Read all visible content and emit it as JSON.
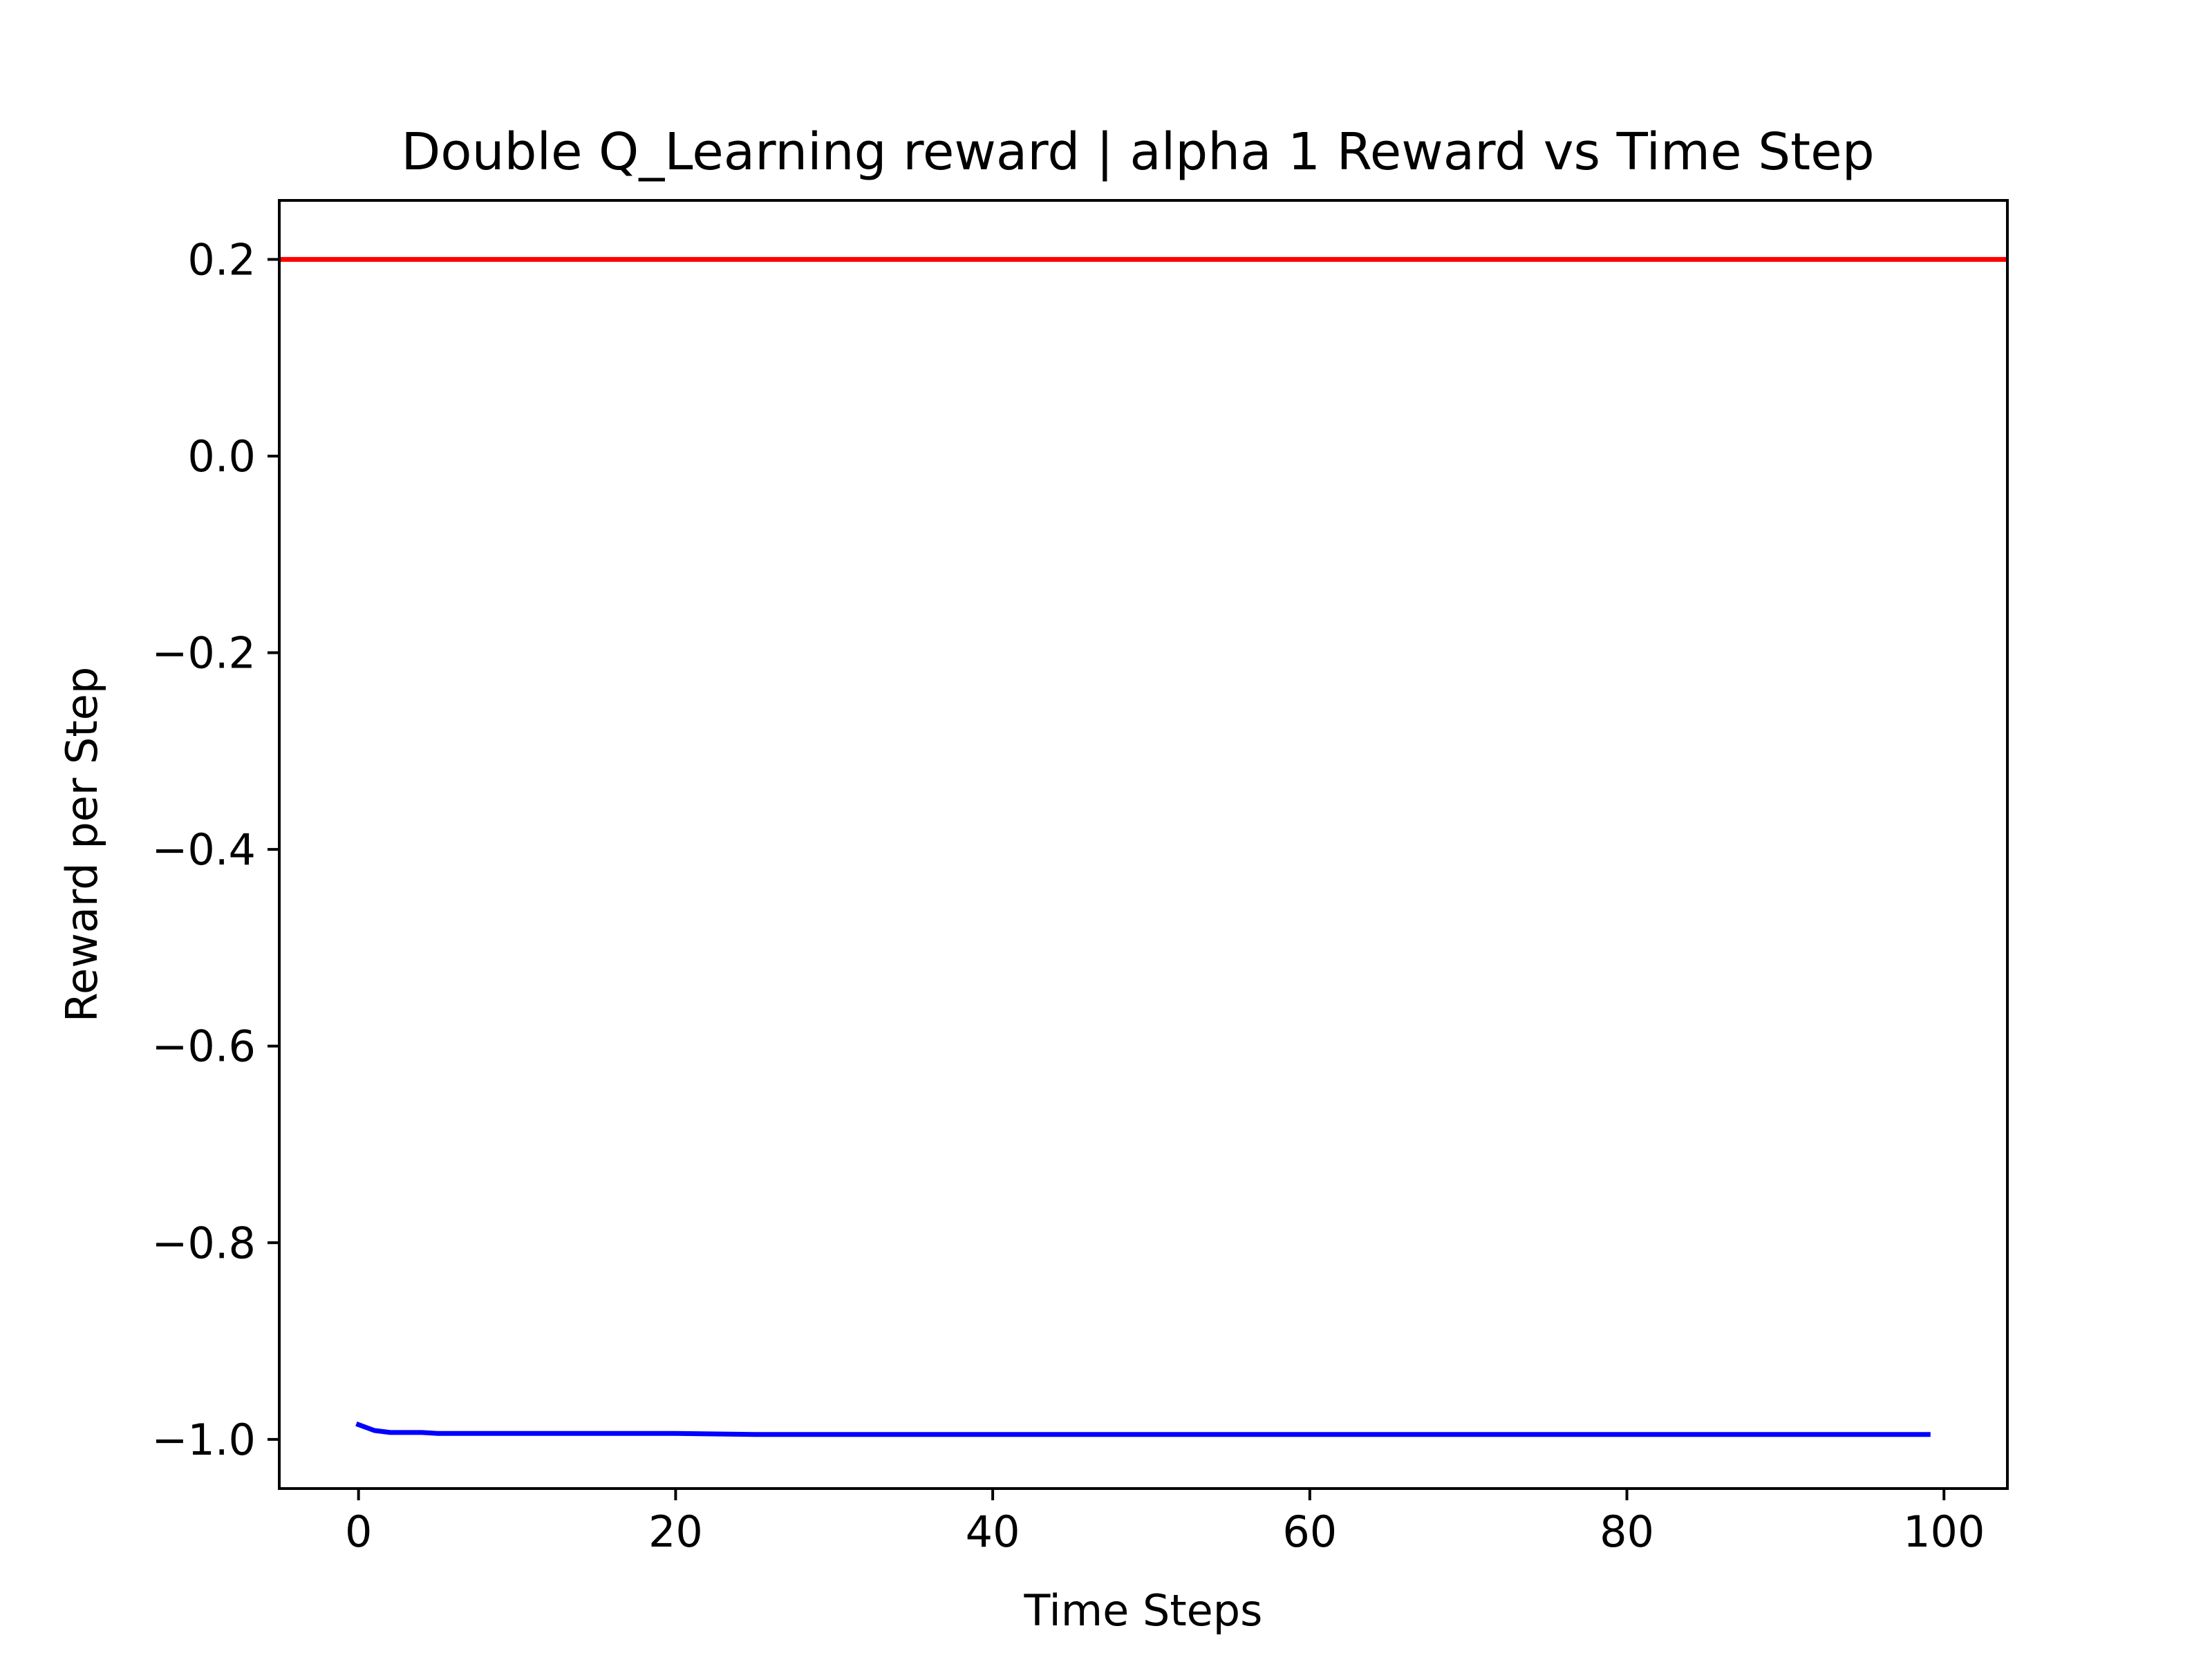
{
  "chart_data": {
    "type": "line",
    "title": "Double Q_Learning reward | alpha 1 Reward vs Time Step",
    "xlabel": "Time Steps",
    "ylabel": "Reward per Step",
    "xlim": [
      -5,
      104
    ],
    "ylim": [
      -1.05,
      0.26
    ],
    "xticks": [
      0,
      20,
      40,
      60,
      80,
      100
    ],
    "xtick_labels": [
      "0",
      "20",
      "40",
      "60",
      "80",
      "100"
    ],
    "yticks": [
      0.2,
      0.0,
      -0.2,
      -0.4,
      -0.6,
      -0.8,
      -1.0
    ],
    "ytick_labels": [
      "0.2",
      "0.0",
      "−0.2",
      "−0.4",
      "−0.6",
      "−0.8",
      "−1.0"
    ],
    "grid": false,
    "legend": "none",
    "series": [
      {
        "color": "#0000ff",
        "x": [
          0,
          1,
          2,
          3,
          4,
          5,
          6,
          7,
          8,
          10,
          12,
          15,
          20,
          25,
          30,
          40,
          50,
          60,
          70,
          80,
          90,
          99
        ],
        "y": [
          -0.985,
          -0.991,
          -0.993,
          -0.993,
          -0.993,
          -0.994,
          -0.994,
          -0.994,
          -0.994,
          -0.994,
          -0.994,
          -0.994,
          -0.994,
          -0.995,
          -0.995,
          -0.995,
          -0.995,
          -0.995,
          -0.995,
          -0.995,
          -0.995,
          -0.995
        ]
      },
      {
        "color": "#ff0000",
        "x": [
          -5,
          104
        ],
        "y": [
          0.2,
          0.2
        ]
      }
    ]
  }
}
